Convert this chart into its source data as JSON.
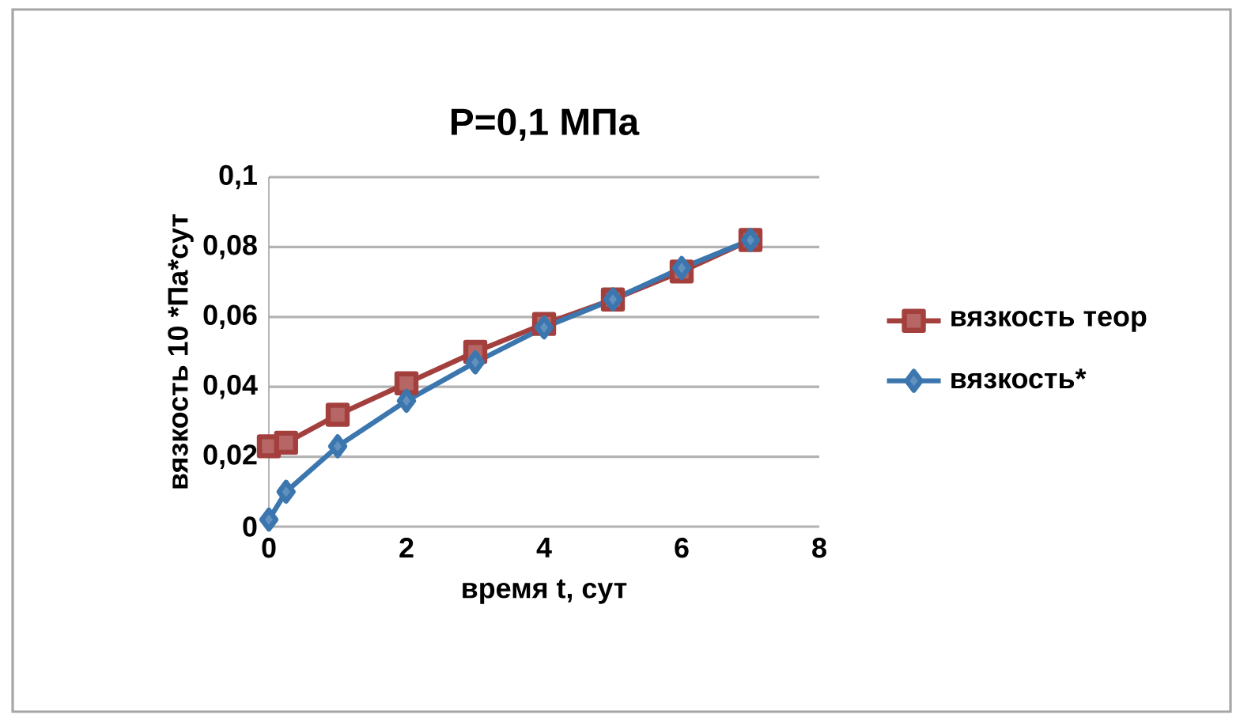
{
  "chart_data": {
    "type": "line",
    "title": "P=0,1 МПа",
    "xlabel": "время t, сут",
    "ylabel": "вязкость 10 *Па*сут",
    "series": [
      {
        "name": "вязкость теор",
        "color": "#a3403e",
        "marker": "square",
        "x": [
          0,
          0.25,
          1,
          2,
          3,
          4,
          5,
          6,
          7
        ],
        "values": [
          0.023,
          0.024,
          0.032,
          0.041,
          0.05,
          0.058,
          0.065,
          0.073,
          0.082
        ]
      },
      {
        "name": "вязкость*",
        "color": "#3b76ae",
        "marker": "diamond",
        "x": [
          0,
          0.25,
          1,
          2,
          3,
          4,
          5,
          6,
          7
        ],
        "values": [
          0.002,
          0.01,
          0.023,
          0.036,
          0.047,
          0.057,
          0.065,
          0.074,
          0.082
        ]
      }
    ],
    "xlim": [
      0,
      8
    ],
    "xticks": [
      0,
      2,
      4,
      6,
      8
    ],
    "ylim": [
      0,
      0.1
    ],
    "yticks": [
      0,
      {
        "value": 0.02,
        "label": "0,02"
      },
      {
        "value": 0.04,
        "label": "0,04"
      },
      {
        "value": 0.06,
        "label": "0,06"
      },
      {
        "value": 0.08,
        "label": "0,08"
      },
      {
        "value": 0.1,
        "label": "0,1"
      }
    ],
    "grid": "y",
    "legend": "right",
    "line_style": "solid"
  }
}
